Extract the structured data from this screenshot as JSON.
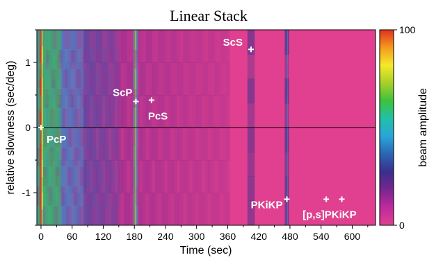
{
  "chart_data": {
    "type": "heatmap",
    "title": "Linear Stack",
    "xlabel": "Time (sec)",
    "ylabel": "relative slowness (sec/deg)",
    "xlim": [
      -8,
      645
    ],
    "ylim": [
      -1.5,
      1.5
    ],
    "x_ticks": [
      "0",
      "60",
      "120",
      "180",
      "240",
      "300",
      "360",
      "420",
      "480",
      "540",
      "600"
    ],
    "x_tick_values": [
      0,
      60,
      120,
      180,
      240,
      300,
      360,
      420,
      480,
      540,
      600
    ],
    "y_ticks": [
      "1",
      "0",
      "-1"
    ],
    "y_tick_values": [
      1,
      0,
      -1
    ],
    "zero_line": 0,
    "colorbar": {
      "label": "beam amplitude",
      "min_label": "0",
      "max_label": "100",
      "min": 0,
      "max": 100,
      "colors": [
        "#e0408f",
        "#c02a9e",
        "#7a2590",
        "#3a2f8c",
        "#2b64b4",
        "#2aa5d8",
        "#23c0a9",
        "#3cc23c",
        "#a9cf2a",
        "#f4ea2a",
        "#f59a1e",
        "#e2301d"
      ]
    },
    "phases": [
      {
        "label": "PcP",
        "time": 0,
        "slowness": 0.0
      },
      {
        "label": "ScP",
        "time": 183,
        "slowness": 0.4
      },
      {
        "label": "PcS",
        "time": 213,
        "slowness": 0.42
      },
      {
        "label": "ScS",
        "time": 405,
        "slowness": 1.2
      },
      {
        "label": "PKiKP",
        "time": 474,
        "slowness": -1.1
      },
      {
        "label": "[p,s]PKiKP",
        "time": 550,
        "slowness": -1.1
      },
      {
        "label": "",
        "time": 580,
        "slowness": -1.1
      }
    ]
  }
}
